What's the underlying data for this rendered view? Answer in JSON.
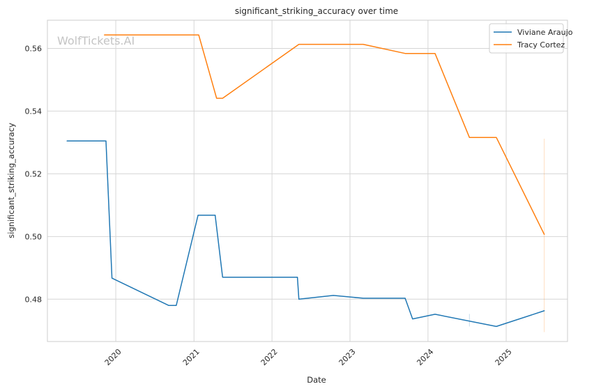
{
  "watermark": "WolfTickets.AI",
  "chart_data": {
    "type": "line",
    "title": "significant_striking_accuracy over time",
    "xlabel": "Date",
    "ylabel": "significant_striking_accuracy",
    "xlim": [
      "2019-02-15",
      "2025-10-15"
    ],
    "ylim": [
      0.4665,
      0.569
    ],
    "x_ticks": [
      "2020",
      "2021",
      "2022",
      "2023",
      "2024",
      "2025"
    ],
    "y_ticks": [
      0.48,
      0.5,
      0.52,
      0.54,
      0.56
    ],
    "y_tick_labels": [
      "0.48",
      "0.50",
      "0.52",
      "0.54",
      "0.56"
    ],
    "grid": true,
    "legend_position": "top-right",
    "series": [
      {
        "name": "Viviane Araujo",
        "color": "#1f77b4",
        "points": [
          [
            "2019-05-18",
            0.5305
          ],
          [
            "2019-11-16",
            0.5305
          ],
          [
            "2019-12-14",
            0.4867
          ],
          [
            "2020-09-05",
            0.478
          ],
          [
            "2020-10-10",
            0.478
          ],
          [
            "2021-01-20",
            0.5068
          ],
          [
            "2021-04-10",
            0.5068
          ],
          [
            "2021-05-15",
            0.487
          ],
          [
            "2022-04-30",
            0.487
          ],
          [
            "2022-05-07",
            0.48
          ],
          [
            "2022-10-15",
            0.4812
          ],
          [
            "2023-03-04",
            0.4803
          ],
          [
            "2023-09-16",
            0.4803
          ],
          [
            "2023-10-21",
            0.4737
          ],
          [
            "2024-02-03",
            0.4752
          ],
          [
            "2024-11-16",
            0.4713
          ],
          [
            "2025-06-28",
            0.4763
          ]
        ]
      },
      {
        "name": "Tracy Cortez",
        "color": "#ff7f0e",
        "points": [
          [
            "2019-11-09",
            0.5643
          ],
          [
            "2021-01-23",
            0.5643
          ],
          [
            "2021-04-17",
            0.5441
          ],
          [
            "2021-05-15",
            0.5441
          ],
          [
            "2022-05-07",
            0.5613
          ],
          [
            "2023-03-04",
            0.5613
          ],
          [
            "2023-09-16",
            0.5584
          ],
          [
            "2024-02-03",
            0.5584
          ],
          [
            "2024-07-13",
            0.5316
          ],
          [
            "2024-11-16",
            0.5316
          ],
          [
            "2025-06-28",
            0.5007
          ]
        ]
      }
    ]
  }
}
